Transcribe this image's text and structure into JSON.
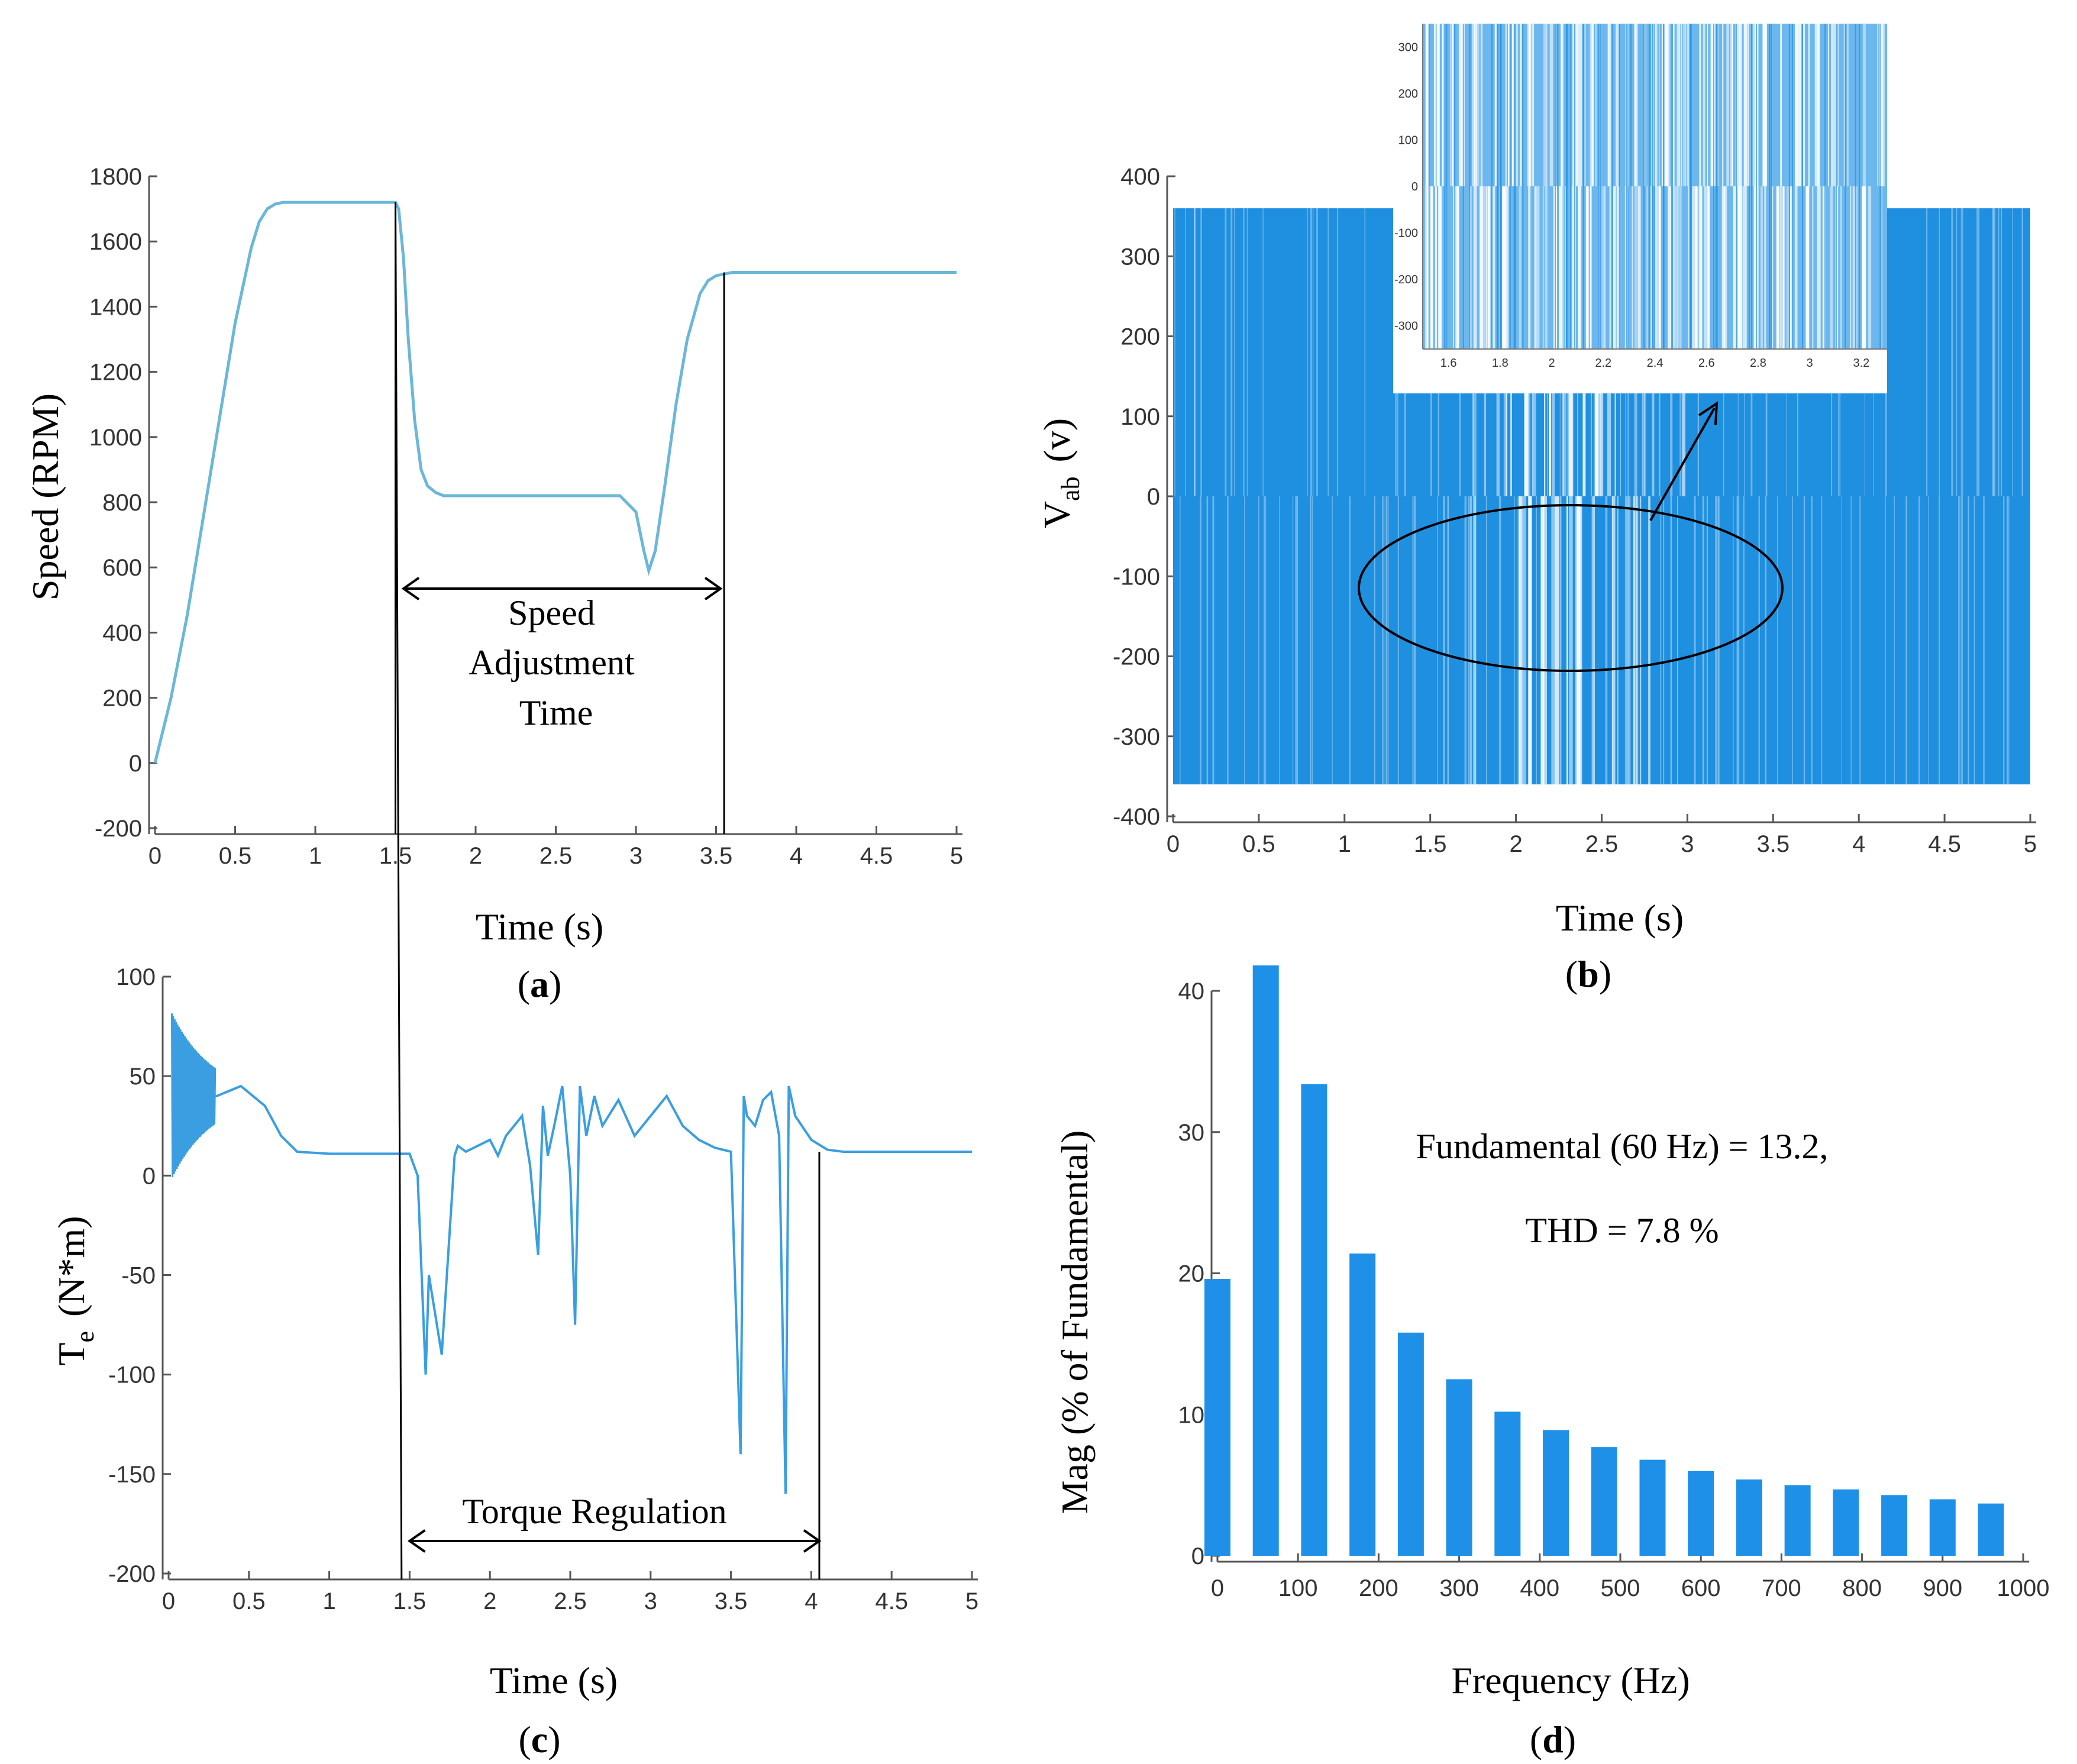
{
  "chart_data": [
    {
      "id": "a",
      "type": "line",
      "caption": "(a)",
      "caption_letter": "a",
      "xlabel": "Time (s)",
      "ylabel": "Speed (RPM)",
      "xlim": [
        0,
        5
      ],
      "ylim": [
        -200,
        1800
      ],
      "xticks": [
        "0",
        "0.5",
        "1",
        "1.5",
        "2",
        "2.5",
        "3",
        "3.5",
        "4",
        "4.5",
        "5"
      ],
      "yticks": [
        "-200",
        "0",
        "200",
        "400",
        "600",
        "800",
        "1000",
        "1200",
        "1400",
        "1600",
        "1800"
      ],
      "color": "#6bb7d8",
      "series": [
        {
          "name": "Speed",
          "x": [
            0,
            0.1,
            0.2,
            0.3,
            0.4,
            0.5,
            0.6,
            0.65,
            0.7,
            0.75,
            0.8,
            0.85,
            0.9,
            1.0,
            1.5,
            1.52,
            1.55,
            1.58,
            1.62,
            1.66,
            1.7,
            1.75,
            1.8,
            1.9,
            2.0,
            2.5,
            2.9,
            3.0,
            3.05,
            3.08,
            3.12,
            3.18,
            3.25,
            3.32,
            3.4,
            3.45,
            3.5,
            3.55,
            3.6,
            4.0,
            4.5,
            5.0
          ],
          "y": [
            0,
            200,
            450,
            750,
            1050,
            1350,
            1580,
            1660,
            1700,
            1715,
            1720,
            1720,
            1720,
            1720,
            1720,
            1700,
            1550,
            1300,
            1050,
            900,
            850,
            830,
            820,
            820,
            820,
            820,
            820,
            770,
            650,
            590,
            650,
            850,
            1100,
            1300,
            1440,
            1480,
            1495,
            1500,
            1505,
            1505,
            1505,
            1505
          ]
        }
      ],
      "annotation": {
        "lines": [
          "Speed",
          "Adjustment",
          "Time"
        ],
        "from_x": 1.55,
        "to_x": 3.55,
        "markers_x": [
          1.5,
          3.55
        ]
      }
    },
    {
      "id": "b",
      "type": "area",
      "caption": "(b)",
      "caption_letter": "b",
      "xlabel": "Time (s)",
      "ylabel_main": "V",
      "ylabel_sub": "ab",
      "ylabel_unit": "(v)",
      "xlim": [
        0,
        5
      ],
      "ylim": [
        -400,
        400
      ],
      "xticks": [
        "0",
        "0.5",
        "1",
        "1.5",
        "2",
        "2.5",
        "3",
        "3.5",
        "4",
        "4.5",
        "5"
      ],
      "yticks": [
        "-400",
        "-300",
        "-200",
        "-100",
        "0",
        "100",
        "200",
        "300",
        "400"
      ],
      "amplitude": 360,
      "color": "#1f8fe0",
      "inset": {
        "xlim": [
          1.5,
          3.3
        ],
        "xticks": [
          "1.6",
          "1.8",
          "2",
          "2.2",
          "2.4",
          "2.6",
          "2.8",
          "3",
          "3.2"
        ],
        "yticks": [
          "-300",
          "-200",
          "-100",
          "0",
          "100",
          "200",
          "300"
        ]
      }
    },
    {
      "id": "c",
      "type": "line",
      "caption": "(c)",
      "caption_letter": "c",
      "xlabel": "Time (s)",
      "ylabel_main": "T",
      "ylabel_sub": "e",
      "ylabel_unit": "(N*m)",
      "xlim": [
        0,
        5
      ],
      "ylim": [
        -200,
        100
      ],
      "xticks": [
        "0",
        "0.5",
        "1",
        "1.5",
        "2",
        "2.5",
        "3",
        "3.5",
        "4",
        "4.5",
        "5"
      ],
      "yticks": [
        "-200",
        "-150",
        "-100",
        "-50",
        "0",
        "50",
        "100"
      ],
      "color": "#3a9ee0",
      "series": [
        {
          "name": "Torque",
          "x": [
            0.02,
            0.3,
            0.45,
            0.6,
            0.7,
            0.8,
            1.0,
            1.5,
            1.55,
            1.58,
            1.6,
            1.62,
            1.66,
            1.7,
            1.74,
            1.78,
            1.8,
            1.85,
            1.9,
            2.0,
            2.05,
            2.1,
            2.2,
            2.25,
            2.3,
            2.33,
            2.36,
            2.4,
            2.45,
            2.5,
            2.53,
            2.56,
            2.6,
            2.65,
            2.7,
            2.8,
            2.9,
            3.0,
            3.1,
            3.2,
            3.3,
            3.4,
            3.5,
            3.56,
            3.58,
            3.6,
            3.65,
            3.7,
            3.75,
            3.8,
            3.84,
            3.86,
            3.9,
            4.0,
            4.1,
            4.2,
            4.5,
            5.0
          ],
          "y": [
            40,
            40,
            45,
            35,
            20,
            12,
            11,
            11,
            0,
            -60,
            -100,
            -50,
            -70,
            -90,
            -40,
            10,
            15,
            12,
            14,
            18,
            10,
            20,
            30,
            5,
            -40,
            35,
            10,
            25,
            45,
            0,
            -75,
            45,
            20,
            40,
            25,
            38,
            20,
            30,
            40,
            25,
            18,
            14,
            12,
            -140,
            40,
            30,
            25,
            38,
            42,
            20,
            -160,
            45,
            30,
            18,
            13,
            12,
            12,
            12
          ]
        }
      ],
      "annotation": {
        "label": "Torque Regulation",
        "from_x": 1.5,
        "to_x": 4.05,
        "markers_x": [
          1.45,
          4.05
        ]
      }
    },
    {
      "id": "d",
      "type": "bar",
      "caption": "(d)",
      "caption_letter": "d",
      "xlabel": "Frequency (Hz)",
      "ylabel": "Mag (% of Fundamental)",
      "xlim": [
        0,
        1000
      ],
      "ylim": [
        0,
        40
      ],
      "xticks": [
        "0",
        "100",
        "200",
        "300",
        "400",
        "500",
        "600",
        "700",
        "800",
        "900",
        "1000"
      ],
      "yticks": [
        "0",
        "10",
        "20",
        "30",
        "40"
      ],
      "x": [
        0,
        60,
        120,
        180,
        240,
        300,
        360,
        420,
        480,
        540,
        600,
        660,
        720,
        780,
        840,
        900,
        960
      ],
      "values": [
        19.6,
        41.8,
        33.4,
        21.4,
        15.8,
        12.5,
        10.2,
        8.9,
        7.7,
        6.8,
        6.0,
        5.4,
        5.0,
        4.7,
        4.3,
        4.0,
        3.7
      ],
      "color": "#1e90e8",
      "annotations": [
        "Fundamental (60 Hz) = 13.2,",
        "THD = 7.8 %"
      ]
    }
  ]
}
